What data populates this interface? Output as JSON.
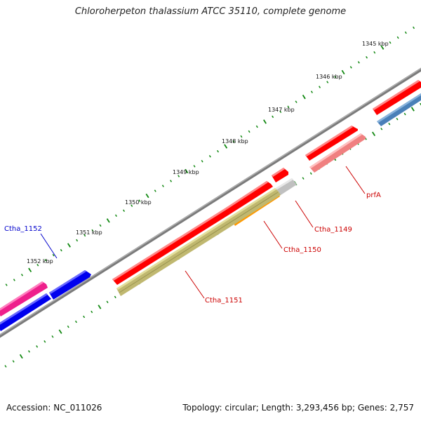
{
  "title": "Chloroherpeton thalassium ATCC 35110, complete genome",
  "footer": {
    "accession": "Accession: NC_011026",
    "summary": "Topology: circular; Length: 3,293,456 bp; Genes: 2,757"
  },
  "ruler": {
    "ticks": [
      "1345 kbp",
      "1346 kbp",
      "1347 kbp",
      "1348 kbp",
      "1349 kbp",
      "1350 kbp",
      "1351 kbp",
      "1352 kbp"
    ]
  },
  "gene_labels": {
    "prfA": "prfA",
    "ctha_1149": "Ctha_1149",
    "ctha_1150": "Ctha_1150",
    "ctha_1151": "Ctha_1151",
    "ctha_1152": "Ctha_1152"
  },
  "colors": {
    "red_gene": "#ff0000",
    "pink_gene": "#f08080",
    "gray_gene": "#c0c0c0",
    "orange_gene": "#ff9900",
    "olive_gene": "#c0b870",
    "blue_gene": "#0000ee",
    "steel_gene": "#4a80b8",
    "magenta_gene": "#ee1f8c",
    "backbone": "#888888",
    "tick": "#118811",
    "label_red": "#cc0000",
    "label_blue": "#0000cc"
  }
}
